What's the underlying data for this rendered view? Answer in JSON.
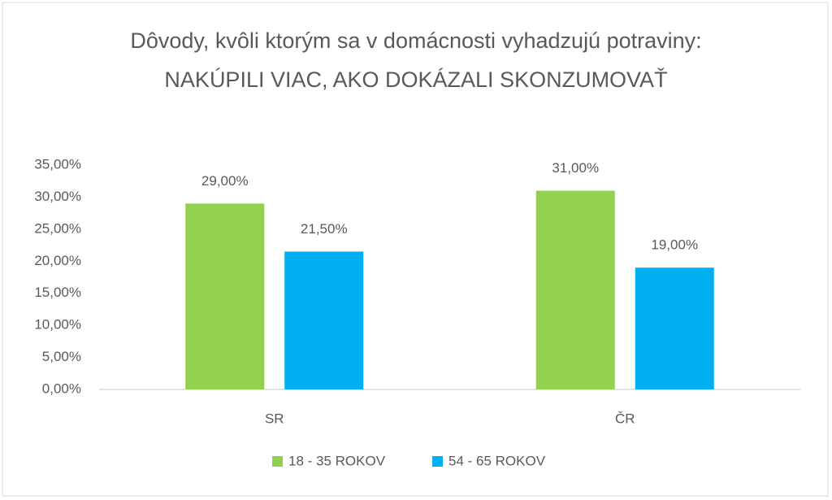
{
  "chart_data": {
    "type": "bar",
    "title": "Dôvody, kvôli ktorým sa v domácnosti vyhadzujú potraviny: NAKÚPILI VIAC, AKO DOKÁZALI SKONZUMOVAŤ",
    "categories": [
      "SR",
      "ČR"
    ],
    "series": [
      {
        "name": "18 - 35 ROKOV",
        "color": "#92d050",
        "values": [
          29,
          31
        ],
        "value_labels": [
          "29,00%",
          "31,00%"
        ]
      },
      {
        "name": "54 - 65 ROKOV",
        "color": "#00b0f0",
        "values": [
          21.5,
          19
        ],
        "value_labels": [
          "21,50%",
          "19,00%"
        ]
      }
    ],
    "ylim": [
      0,
      35
    ],
    "yticks": [
      {
        "value": 0,
        "label": "0,00%"
      },
      {
        "value": 5,
        "label": "5,00%"
      },
      {
        "value": 10,
        "label": "10,00%"
      },
      {
        "value": 15,
        "label": "15,00%"
      },
      {
        "value": 20,
        "label": "20,00%"
      },
      {
        "value": 25,
        "label": "25,00%"
      },
      {
        "value": 30,
        "label": "30,00%"
      },
      {
        "value": 35,
        "label": "35,00%"
      }
    ],
    "grid": false,
    "legend": "bottom"
  }
}
